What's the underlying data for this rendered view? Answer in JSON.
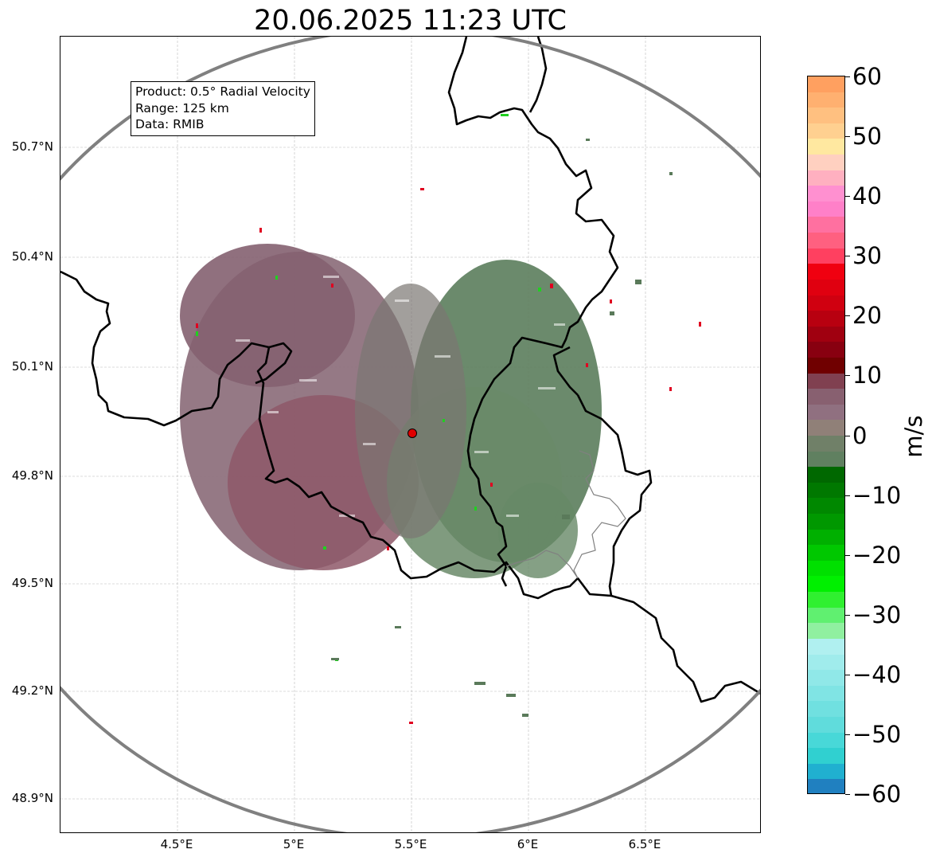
{
  "title": "20.06.2025 11:23 UTC",
  "info": {
    "product": "Product: 0.5° Radial Velocity",
    "range": "Range: 125 km",
    "data": "Data: RMIB"
  },
  "axes": {
    "lat_labels": [
      "50.7°N",
      "50.4°N",
      "50.1°N",
      "49.8°N",
      "49.5°N",
      "49.2°N",
      "48.9°N"
    ],
    "lon_labels": [
      "4.5°E",
      "5°E",
      "5.5°E",
      "6°E",
      "6.5°E"
    ]
  },
  "colorbar": {
    "unit": "m/s",
    "ticks": [
      "60",
      "50",
      "40",
      "30",
      "20",
      "10",
      "0",
      "−10",
      "−20",
      "−30",
      "−40",
      "−50",
      "−60"
    ],
    "colors": [
      "#ffa060",
      "#ffb070",
      "#ffc080",
      "#ffd090",
      "#ffe8a0",
      "#ffd0c0",
      "#ffb0c0",
      "#ff90d0",
      "#ff80c8",
      "#ff70a0",
      "#ff6080",
      "#ff4060",
      "#f00010",
      "#e00010",
      "#d00010",
      "#b80010",
      "#a00010",
      "#880010",
      "#700000",
      "#804050",
      "#886070",
      "#907080",
      "#908078",
      "#708068",
      "#608060",
      "#006800",
      "#007800",
      "#008800",
      "#009800",
      "#00b000",
      "#00c800",
      "#00e000",
      "#00f000",
      "#30f030",
      "#60f070",
      "#90f0a0",
      "#b0f0f0",
      "#a0ecec",
      "#90e8e8",
      "#80e4e4",
      "#70e0e0",
      "#60dcdc",
      "#48d8d8",
      "#30d0d0",
      "#20b0d0",
      "#2080c0"
    ]
  },
  "map": {
    "radar_site": "radar-location",
    "radar_marker_color": "#e00000",
    "range_ring_color": "#808080",
    "border_color": "#000000"
  }
}
